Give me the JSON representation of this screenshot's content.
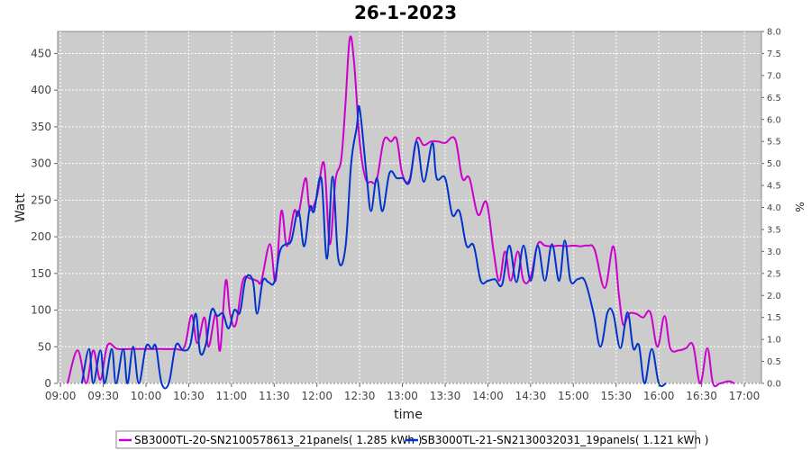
{
  "chart_data": {
    "type": "line",
    "title": "26-1-2023",
    "xlabel": "time",
    "ylabel": "Watt",
    "y2label": "%",
    "xlim_hours": [
      8.967,
      17.2
    ],
    "x_tick_labels": [
      "09:00",
      "09:30",
      "10:00",
      "10:30",
      "11:00",
      "11:30",
      "12:00",
      "12:30",
      "13:00",
      "13:30",
      "14:00",
      "14:30",
      "15:00",
      "15:30",
      "16:00",
      "16:30",
      "17:00"
    ],
    "ylim": [
      0,
      480
    ],
    "y_ticks": [
      0,
      50,
      100,
      150,
      200,
      250,
      300,
      350,
      400,
      450
    ],
    "y2lim": [
      0,
      8.0
    ],
    "y2_ticks": [
      "0.0",
      "0.5",
      "1.0",
      "1.5",
      "2.0",
      "2.5",
      "3.0",
      "3.5",
      "4.0",
      "4.5",
      "5.0",
      "5.5",
      "6.0",
      "6.5",
      "7.0",
      "7.5",
      "8.0"
    ],
    "grid": true,
    "background": "#cccccc",
    "legend_position": "bottom",
    "series": [
      {
        "name": "SB3000TL-20-SN2100578613_21panels( 1.285 kWh )",
        "color": "#cc00cc",
        "points": [
          [
            "09:05",
            0
          ],
          [
            "09:12",
            45
          ],
          [
            "09:18",
            0
          ],
          [
            "09:23",
            45
          ],
          [
            "09:28",
            5
          ],
          [
            "09:33",
            52
          ],
          [
            "09:40",
            47
          ],
          [
            "09:50",
            47
          ],
          [
            "10:00",
            47
          ],
          [
            "10:10",
            47
          ],
          [
            "10:20",
            47
          ],
          [
            "10:27",
            50
          ],
          [
            "10:32",
            93
          ],
          [
            "10:36",
            55
          ],
          [
            "10:41",
            90
          ],
          [
            "10:44",
            50
          ],
          [
            "10:49",
            95
          ],
          [
            "10:52",
            45
          ],
          [
            "10:56",
            140
          ],
          [
            "10:59",
            95
          ],
          [
            "11:03",
            80
          ],
          [
            "11:08",
            140
          ],
          [
            "11:13",
            143
          ],
          [
            "11:18",
            140
          ],
          [
            "11:21",
            140
          ],
          [
            "11:27",
            190
          ],
          [
            "11:31",
            140
          ],
          [
            "11:35",
            235
          ],
          [
            "11:39",
            187
          ],
          [
            "11:44",
            235
          ],
          [
            "11:47",
            230
          ],
          [
            "11:52",
            280
          ],
          [
            "11:55",
            237
          ],
          [
            "12:00",
            255
          ],
          [
            "12:05",
            300
          ],
          [
            "12:09",
            190
          ],
          [
            "12:13",
            277
          ],
          [
            "12:17",
            305
          ],
          [
            "12:20",
            380
          ],
          [
            "12:23",
            470
          ],
          [
            "12:26",
            440
          ],
          [
            "12:30",
            330
          ],
          [
            "12:34",
            280
          ],
          [
            "12:38",
            275
          ],
          [
            "12:42",
            278
          ],
          [
            "12:47",
            332
          ],
          [
            "12:52",
            330
          ],
          [
            "12:56",
            333
          ],
          [
            "13:00",
            285
          ],
          [
            "13:05",
            278
          ],
          [
            "13:10",
            333
          ],
          [
            "13:15",
            325
          ],
          [
            "13:20",
            330
          ],
          [
            "13:25",
            330
          ],
          [
            "13:30",
            328
          ],
          [
            "13:37",
            333
          ],
          [
            "13:42",
            280
          ],
          [
            "13:47",
            280
          ],
          [
            "13:53",
            230
          ],
          [
            "13:59",
            247
          ],
          [
            "14:04",
            180
          ],
          [
            "14:08",
            140
          ],
          [
            "14:12",
            180
          ],
          [
            "14:16",
            140
          ],
          [
            "14:21",
            180
          ],
          [
            "14:25",
            140
          ],
          [
            "14:30",
            145
          ],
          [
            "14:35",
            190
          ],
          [
            "14:40",
            188
          ],
          [
            "14:45",
            187
          ],
          [
            "14:50",
            188
          ],
          [
            "14:55",
            187
          ],
          [
            "15:00",
            188
          ],
          [
            "15:05",
            187
          ],
          [
            "15:10",
            188
          ],
          [
            "15:15",
            182
          ],
          [
            "15:22",
            130
          ],
          [
            "15:28",
            187
          ],
          [
            "15:32",
            120
          ],
          [
            "15:35",
            80
          ],
          [
            "15:39",
            95
          ],
          [
            "15:44",
            95
          ],
          [
            "15:49",
            90
          ],
          [
            "15:54",
            97
          ],
          [
            "15:59",
            50
          ],
          [
            "16:04",
            92
          ],
          [
            "16:08",
            48
          ],
          [
            "16:14",
            45
          ],
          [
            "16:19",
            48
          ],
          [
            "16:24",
            52
          ],
          [
            "16:29",
            0
          ],
          [
            "16:34",
            48
          ],
          [
            "16:38",
            0
          ],
          [
            "16:43",
            0
          ],
          [
            "16:49",
            3
          ],
          [
            "16:53",
            0
          ]
        ]
      },
      {
        "name": "SB3000TL-21-SN2130032031_19panels( 1.121 kWh )",
        "color": "#0033cc",
        "points": [
          [
            "09:15",
            0
          ],
          [
            "09:20",
            47
          ],
          [
            "09:23",
            0
          ],
          [
            "09:28",
            45
          ],
          [
            "09:31",
            0
          ],
          [
            "09:36",
            47
          ],
          [
            "09:39",
            0
          ],
          [
            "09:44",
            47
          ],
          [
            "09:47",
            0
          ],
          [
            "09:51",
            50
          ],
          [
            "09:55",
            0
          ],
          [
            "10:00",
            50
          ],
          [
            "10:04",
            47
          ],
          [
            "10:07",
            50
          ],
          [
            "10:11",
            0
          ],
          [
            "10:16",
            0
          ],
          [
            "10:21",
            52
          ],
          [
            "10:26",
            45
          ],
          [
            "10:31",
            52
          ],
          [
            "10:35",
            95
          ],
          [
            "10:38",
            42
          ],
          [
            "10:42",
            53
          ],
          [
            "10:46",
            100
          ],
          [
            "10:50",
            92
          ],
          [
            "10:54",
            95
          ],
          [
            "10:58",
            75
          ],
          [
            "11:02",
            100
          ],
          [
            "11:06",
            97
          ],
          [
            "11:10",
            143
          ],
          [
            "11:15",
            140
          ],
          [
            "11:18",
            95
          ],
          [
            "11:22",
            140
          ],
          [
            "11:26",
            138
          ],
          [
            "11:30",
            138
          ],
          [
            "11:34",
            180
          ],
          [
            "11:38",
            190
          ],
          [
            "11:42",
            195
          ],
          [
            "11:47",
            235
          ],
          [
            "11:51",
            187
          ],
          [
            "11:55",
            240
          ],
          [
            "11:58",
            235
          ],
          [
            "12:03",
            280
          ],
          [
            "12:07",
            170
          ],
          [
            "12:11",
            282
          ],
          [
            "12:15",
            170
          ],
          [
            "12:20",
            185
          ],
          [
            "12:24",
            300
          ],
          [
            "12:28",
            350
          ],
          [
            "12:30",
            375
          ],
          [
            "12:35",
            280
          ],
          [
            "12:38",
            235
          ],
          [
            "12:42",
            280
          ],
          [
            "12:46",
            235
          ],
          [
            "12:51",
            287
          ],
          [
            "12:56",
            280
          ],
          [
            "13:00",
            280
          ],
          [
            "13:05",
            275
          ],
          [
            "13:10",
            330
          ],
          [
            "13:15",
            275
          ],
          [
            "13:21",
            328
          ],
          [
            "13:24",
            280
          ],
          [
            "13:30",
            280
          ],
          [
            "13:35",
            230
          ],
          [
            "13:40",
            235
          ],
          [
            "13:45",
            188
          ],
          [
            "13:50",
            188
          ],
          [
            "13:55",
            140
          ],
          [
            "14:00",
            140
          ],
          [
            "14:05",
            142
          ],
          [
            "14:10",
            135
          ],
          [
            "14:15",
            188
          ],
          [
            "14:20",
            138
          ],
          [
            "14:25",
            188
          ],
          [
            "14:30",
            140
          ],
          [
            "14:35",
            188
          ],
          [
            "14:40",
            140
          ],
          [
            "14:45",
            190
          ],
          [
            "14:50",
            140
          ],
          [
            "14:54",
            195
          ],
          [
            "14:58",
            140
          ],
          [
            "15:03",
            142
          ],
          [
            "15:08",
            140
          ],
          [
            "15:14",
            97
          ],
          [
            "15:19",
            50
          ],
          [
            "15:24",
            97
          ],
          [
            "15:28",
            95
          ],
          [
            "15:33",
            48
          ],
          [
            "15:38",
            97
          ],
          [
            "15:42",
            48
          ],
          [
            "15:46",
            52
          ],
          [
            "15:50",
            0
          ],
          [
            "15:55",
            47
          ],
          [
            "16:00",
            0
          ],
          [
            "16:05",
            0
          ]
        ]
      }
    ]
  },
  "legend": {
    "items": [
      {
        "label": "SB3000TL-20-SN2100578613_21panels( 1.285 kWh )",
        "color": "#cc00cc"
      },
      {
        "label": "SB3000TL-21-SN2130032031_19panels( 1.121 kWh )",
        "color": "#0033cc"
      }
    ]
  }
}
